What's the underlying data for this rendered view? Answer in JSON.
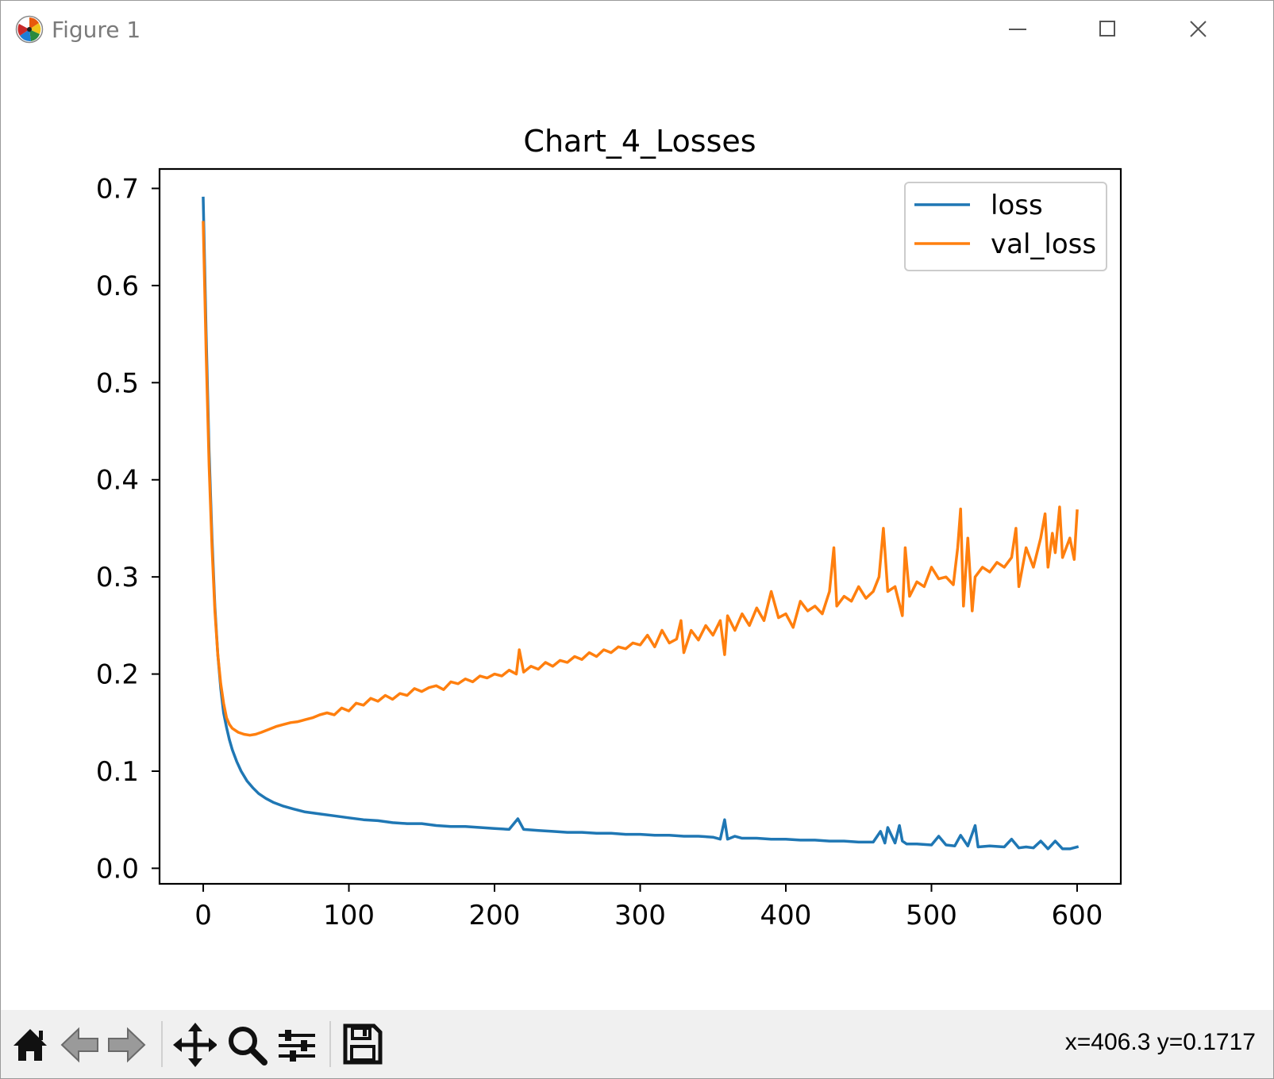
{
  "window": {
    "title": "Figure 1",
    "buttons": [
      "minimize",
      "maximize",
      "close"
    ]
  },
  "toolbar": {
    "buttons": [
      "home-icon",
      "back-arrow-icon",
      "forward-arrow-icon",
      "pan-icon",
      "zoom-icon",
      "configure-subplots-icon",
      "save-icon"
    ],
    "coords": "x=406.3 y=0.1717"
  },
  "chart_data": {
    "type": "line",
    "title": "Chart_4_Losses",
    "xlabel": "",
    "ylabel": "",
    "xlim": [
      -30,
      630
    ],
    "ylim": [
      -0.016,
      0.72
    ],
    "xticks": [
      0,
      100,
      200,
      300,
      400,
      500,
      600
    ],
    "xtick_labels": [
      "0",
      "100",
      "200",
      "300",
      "400",
      "500",
      "600"
    ],
    "yticks": [
      0.0,
      0.1,
      0.2,
      0.3,
      0.4,
      0.5,
      0.6,
      0.7
    ],
    "ytick_labels": [
      "0.0",
      "0.1",
      "0.2",
      "0.3",
      "0.4",
      "0.5",
      "0.6",
      "0.7"
    ],
    "grid": false,
    "legend": "top-right",
    "colors": {
      "loss": "#1f77b4",
      "val_loss": "#ff7f0e"
    },
    "series": [
      {
        "name": "loss",
        "x": [
          0,
          2,
          4,
          6,
          8,
          10,
          12,
          14,
          16,
          18,
          20,
          23,
          26,
          30,
          34,
          38,
          43,
          48,
          55,
          62,
          70,
          80,
          90,
          100,
          110,
          120,
          130,
          140,
          150,
          160,
          170,
          180,
          190,
          200,
          210,
          216,
          220,
          230,
          240,
          250,
          260,
          270,
          280,
          290,
          300,
          310,
          320,
          330,
          340,
          350,
          355,
          358,
          360,
          365,
          370,
          380,
          390,
          400,
          410,
          420,
          430,
          440,
          450,
          460,
          465,
          468,
          470,
          475,
          478,
          480,
          483,
          490,
          500,
          505,
          510,
          516,
          520,
          525,
          530,
          532,
          540,
          550,
          555,
          560,
          565,
          570,
          575,
          580,
          585,
          590,
          595,
          600
        ],
        "y": [
          0.69,
          0.55,
          0.43,
          0.34,
          0.27,
          0.22,
          0.185,
          0.16,
          0.145,
          0.132,
          0.122,
          0.11,
          0.1,
          0.09,
          0.083,
          0.077,
          0.072,
          0.068,
          0.064,
          0.061,
          0.058,
          0.056,
          0.054,
          0.052,
          0.05,
          0.049,
          0.047,
          0.046,
          0.046,
          0.044,
          0.043,
          0.043,
          0.042,
          0.041,
          0.04,
          0.051,
          0.04,
          0.039,
          0.038,
          0.037,
          0.037,
          0.036,
          0.036,
          0.035,
          0.035,
          0.034,
          0.034,
          0.033,
          0.033,
          0.032,
          0.03,
          0.05,
          0.03,
          0.033,
          0.031,
          0.031,
          0.03,
          0.03,
          0.029,
          0.029,
          0.028,
          0.028,
          0.027,
          0.027,
          0.038,
          0.026,
          0.042,
          0.026,
          0.044,
          0.028,
          0.025,
          0.025,
          0.024,
          0.033,
          0.024,
          0.023,
          0.034,
          0.023,
          0.044,
          0.022,
          0.023,
          0.022,
          0.03,
          0.021,
          0.022,
          0.021,
          0.028,
          0.02,
          0.028,
          0.02,
          0.02,
          0.022
        ]
      },
      {
        "name": "val_loss",
        "x": [
          0,
          2,
          4,
          6,
          8,
          10,
          12,
          14,
          16,
          18,
          20,
          24,
          28,
          32,
          36,
          40,
          45,
          50,
          55,
          60,
          65,
          70,
          75,
          80,
          85,
          90,
          95,
          100,
          105,
          110,
          115,
          120,
          125,
          130,
          135,
          140,
          145,
          150,
          155,
          160,
          165,
          170,
          175,
          180,
          185,
          190,
          195,
          200,
          205,
          210,
          215,
          217,
          220,
          225,
          230,
          235,
          240,
          245,
          250,
          255,
          260,
          265,
          270,
          275,
          280,
          285,
          290,
          295,
          300,
          305,
          310,
          315,
          320,
          325,
          328,
          330,
          335,
          340,
          345,
          350,
          355,
          358,
          360,
          365,
          370,
          375,
          380,
          385,
          390,
          395,
          400,
          405,
          410,
          415,
          420,
          425,
          430,
          433,
          435,
          440,
          445,
          450,
          455,
          460,
          464,
          467,
          470,
          475,
          480,
          482,
          485,
          490,
          495,
          500,
          505,
          510,
          515,
          518,
          520,
          522,
          525,
          528,
          530,
          535,
          540,
          545,
          550,
          555,
          558,
          560,
          565,
          570,
          575,
          578,
          580,
          583,
          585,
          588,
          590,
          595,
          598,
          600
        ],
        "y": [
          0.665,
          0.53,
          0.415,
          0.33,
          0.265,
          0.22,
          0.19,
          0.17,
          0.155,
          0.148,
          0.144,
          0.14,
          0.138,
          0.137,
          0.138,
          0.14,
          0.143,
          0.146,
          0.148,
          0.15,
          0.151,
          0.153,
          0.155,
          0.158,
          0.16,
          0.158,
          0.165,
          0.162,
          0.17,
          0.168,
          0.175,
          0.172,
          0.178,
          0.174,
          0.18,
          0.178,
          0.185,
          0.182,
          0.186,
          0.188,
          0.184,
          0.192,
          0.19,
          0.195,
          0.192,
          0.198,
          0.196,
          0.2,
          0.198,
          0.204,
          0.2,
          0.225,
          0.202,
          0.208,
          0.205,
          0.212,
          0.208,
          0.214,
          0.212,
          0.218,
          0.215,
          0.222,
          0.218,
          0.225,
          0.222,
          0.228,
          0.226,
          0.232,
          0.23,
          0.24,
          0.228,
          0.245,
          0.232,
          0.236,
          0.255,
          0.222,
          0.245,
          0.235,
          0.25,
          0.24,
          0.255,
          0.22,
          0.26,
          0.245,
          0.262,
          0.25,
          0.268,
          0.255,
          0.285,
          0.258,
          0.262,
          0.248,
          0.275,
          0.265,
          0.27,
          0.262,
          0.285,
          0.33,
          0.27,
          0.28,
          0.275,
          0.29,
          0.278,
          0.285,
          0.3,
          0.35,
          0.285,
          0.29,
          0.26,
          0.33,
          0.28,
          0.295,
          0.29,
          0.31,
          0.298,
          0.3,
          0.292,
          0.33,
          0.37,
          0.27,
          0.34,
          0.265,
          0.3,
          0.31,
          0.305,
          0.315,
          0.31,
          0.32,
          0.35,
          0.29,
          0.33,
          0.31,
          0.34,
          0.365,
          0.31,
          0.345,
          0.325,
          0.372,
          0.32,
          0.34,
          0.318,
          0.368
        ]
      }
    ]
  }
}
